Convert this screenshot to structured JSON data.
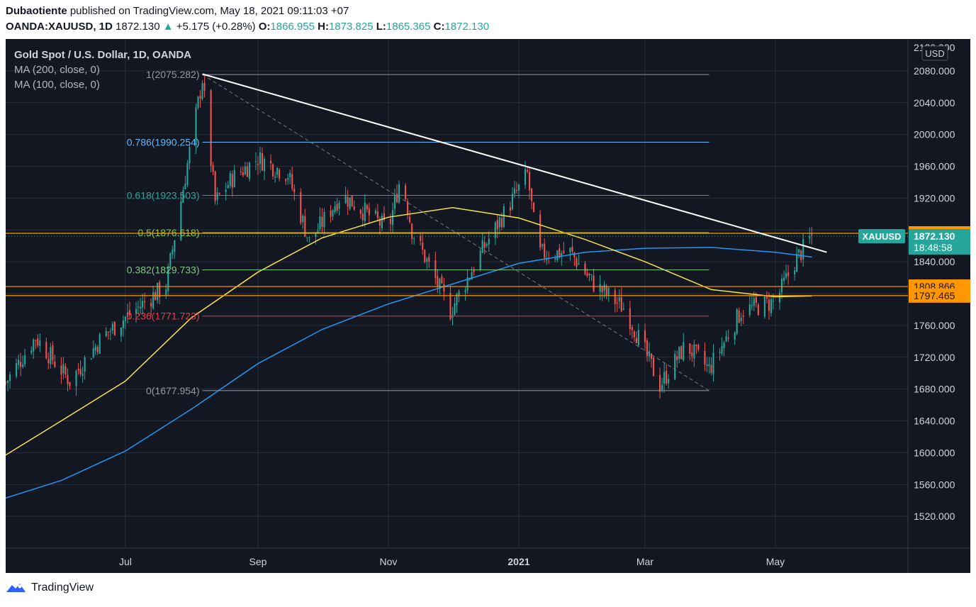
{
  "header": {
    "author": "Dubaotiente",
    "published_text": "published on TradingView.com, May 18, 2021 09:11:03 +07",
    "symbol": "OANDA:XAUUSD, 1D",
    "last": "1872.130",
    "change_arrow": "▲",
    "change": "+5.175 (+0.28%)",
    "o_label": "O:",
    "o": "1866.955",
    "h_label": "H:",
    "h": "1873.825",
    "l_label": "L:",
    "l": "1865.365",
    "c_label": "C:",
    "c": "1872.130"
  },
  "legend": {
    "title": "Gold Spot / U.S. Dollar, 1D, OANDA",
    "ma200": "MA (200, close, 0)",
    "ma100": "MA (100, close, 0)"
  },
  "footer": {
    "brand": "TradingView",
    "logo_icon": "tradingview-logo-icon"
  },
  "colors": {
    "background": "#131722",
    "grid": "#2a2e39",
    "up": "#26a69a",
    "down": "#ef5350",
    "ma200": "#2196f3",
    "ma100": "#f7e14b",
    "trendline": "#ffffff",
    "hline": "#ff9800"
  },
  "chart_data": {
    "type": "candlestick",
    "title": "Gold Spot / U.S. Dollar, 1D, OANDA",
    "currency": "USD",
    "ylim": [
      1480,
      2120
    ],
    "y_ticks": [
      "1520.000",
      "1560.000",
      "1600.000",
      "1640.000",
      "1680.000",
      "1720.000",
      "1760.000",
      "1800.000",
      "1840.000",
      "1880.000",
      "1920.000",
      "1960.000",
      "2000.000",
      "2040.000",
      "2080.000"
    ],
    "y_tick_partial": "2120.000",
    "x_ticks": [
      {
        "date": "2020-07-01",
        "label": "Jul",
        "bold": false
      },
      {
        "date": "2020-09-01",
        "label": "Sep",
        "bold": false
      },
      {
        "date": "2020-11-01",
        "label": "Nov",
        "bold": false
      },
      {
        "date": "2021-01-01",
        "label": "2021",
        "bold": true
      },
      {
        "date": "2021-03-01",
        "label": "Mar",
        "bold": false
      },
      {
        "date": "2021-05-01",
        "label": "May",
        "bold": false
      }
    ],
    "date_range": [
      "2020-05-06",
      "2021-07-02"
    ],
    "fibonacci": {
      "start_date": "2020-08-06",
      "end_date": "2021-03-31",
      "levels": [
        {
          "ratio": "1",
          "value": 2075.282,
          "label": "1(2075.282)",
          "color": "#9598a1"
        },
        {
          "ratio": "0.786",
          "value": 1990.254,
          "label": "0.786(1990.254)",
          "color": "#64b5f6"
        },
        {
          "ratio": "0.618",
          "value": 1923.503,
          "label": "0.618(1923.503)",
          "color": "#26a69a"
        },
        {
          "ratio": "0.5",
          "value": 1876.618,
          "label": "0.5(1876.618)",
          "color": "#8bc34a"
        },
        {
          "ratio": "0.382",
          "value": 1829.733,
          "label": "0.382(1829.733)",
          "color": "#81c784"
        },
        {
          "ratio": "0.236",
          "value": 1771.723,
          "label": "0.236(1771.723)",
          "color": "#f23645"
        },
        {
          "ratio": "0",
          "value": 1677.954,
          "label": "0(1677.954)",
          "color": "#9598a1"
        }
      ]
    },
    "horizontal_lines": [
      {
        "value": 1875.736,
        "label": "1875.736",
        "color": "#ff9800"
      },
      {
        "value": 1808.866,
        "label": "1808.866",
        "color": "#ff9800"
      },
      {
        "value": 1797.465,
        "label": "1797.465",
        "color": "#ff9800"
      }
    ],
    "trendline": {
      "start": {
        "date": "2020-08-06",
        "value": 2076
      },
      "end": {
        "date": "2021-05-25",
        "value": 1852
      }
    },
    "fib_diagonal": {
      "start": {
        "date": "2020-08-06",
        "value": 2075.282
      },
      "end": {
        "date": "2021-03-31",
        "value": 1677.954
      }
    },
    "last_price": {
      "symbol": "XAUUSD",
      "value": "1872.130",
      "countdown": "18:48:58"
    },
    "ma200": {
      "name": "MA (200, close, 0)",
      "points": [
        [
          "2020-05-06",
          1543
        ],
        [
          "2020-06-01",
          1565
        ],
        [
          "2020-07-01",
          1602
        ],
        [
          "2020-08-01",
          1655
        ],
        [
          "2020-09-01",
          1712
        ],
        [
          "2020-10-01",
          1755
        ],
        [
          "2020-11-01",
          1787
        ],
        [
          "2020-12-01",
          1812
        ],
        [
          "2021-01-01",
          1838
        ],
        [
          "2021-02-01",
          1852
        ],
        [
          "2021-03-01",
          1857
        ],
        [
          "2021-04-01",
          1858
        ],
        [
          "2021-05-01",
          1852
        ],
        [
          "2021-05-18",
          1846
        ]
      ]
    },
    "ma100": {
      "name": "MA (100, close, 0)",
      "points": [
        [
          "2020-05-06",
          1597
        ],
        [
          "2020-06-01",
          1640
        ],
        [
          "2020-07-01",
          1690
        ],
        [
          "2020-08-01",
          1770
        ],
        [
          "2020-09-01",
          1827
        ],
        [
          "2020-10-01",
          1870
        ],
        [
          "2020-11-01",
          1896
        ],
        [
          "2020-12-01",
          1908
        ],
        [
          "2021-01-01",
          1895
        ],
        [
          "2021-02-01",
          1868
        ],
        [
          "2021-03-01",
          1840
        ],
        [
          "2021-04-01",
          1805
        ],
        [
          "2021-05-01",
          1796
        ],
        [
          "2021-05-18",
          1797
        ]
      ]
    },
    "price_path": [
      [
        "2020-05-06",
        1688
      ],
      [
        "2020-05-20",
        1745
      ],
      [
        "2020-06-05",
        1690
      ],
      [
        "2020-06-20",
        1745
      ],
      [
        "2020-07-01",
        1770
      ],
      [
        "2020-07-20",
        1810
      ],
      [
        "2020-08-06",
        2070
      ],
      [
        "2020-08-12",
        1915
      ],
      [
        "2020-08-20",
        1945
      ],
      [
        "2020-09-01",
        1970
      ],
      [
        "2020-09-15",
        1950
      ],
      [
        "2020-09-25",
        1865
      ],
      [
        "2020-10-10",
        1925
      ],
      [
        "2020-11-01",
        1880
      ],
      [
        "2020-11-07",
        1950
      ],
      [
        "2020-11-12",
        1880
      ],
      [
        "2020-11-30",
        1778
      ],
      [
        "2020-12-15",
        1855
      ],
      [
        "2021-01-05",
        1950
      ],
      [
        "2021-01-10",
        1850
      ],
      [
        "2021-01-25",
        1852
      ],
      [
        "2021-02-05",
        1812
      ],
      [
        "2021-02-20",
        1780
      ],
      [
        "2021-03-08",
        1685
      ],
      [
        "2021-03-20",
        1735
      ],
      [
        "2021-03-31",
        1705
      ],
      [
        "2021-04-15",
        1778
      ],
      [
        "2021-05-01",
        1790
      ],
      [
        "2021-05-10",
        1840
      ],
      [
        "2021-05-18",
        1872
      ]
    ]
  }
}
